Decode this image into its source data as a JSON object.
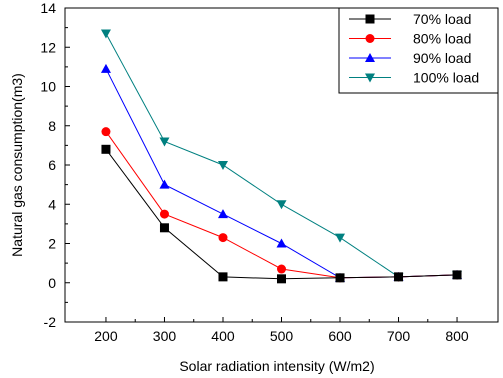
{
  "chart_data": {
    "type": "line",
    "title": "",
    "xlabel": "Solar radiation intensity (W/m2)",
    "ylabel": "Natural gas consumption(m3)",
    "x": [
      200,
      300,
      400,
      500,
      600,
      700,
      800
    ],
    "xticks": [
      "200",
      "300",
      "400",
      "500",
      "600",
      "700",
      "800"
    ],
    "xlim": [
      130,
      870
    ],
    "yticks": [
      "-2",
      "0",
      "2",
      "4",
      "6",
      "8",
      "10",
      "12",
      "14"
    ],
    "ylim": [
      -2,
      14
    ],
    "grid": false,
    "legend_position": "top-right",
    "series": [
      {
        "name": "70% load",
        "color": "#000000",
        "marker": "square",
        "values": [
          6.8,
          2.8,
          0.3,
          0.2,
          0.25,
          0.3,
          0.4
        ]
      },
      {
        "name": "80% load",
        "color": "#ff0000",
        "marker": "circle",
        "values": [
          7.7,
          3.5,
          2.3,
          0.7,
          0.25,
          0.3,
          0.4
        ]
      },
      {
        "name": "90% load",
        "color": "#0000ff",
        "marker": "triangle-up",
        "values": [
          10.9,
          5.0,
          3.5,
          2.0,
          0.25,
          0.3,
          0.4
        ]
      },
      {
        "name": "100% load",
        "color": "#008080",
        "marker": "triangle-down",
        "values": [
          12.7,
          7.2,
          6.0,
          4.0,
          2.3,
          0.3,
          0.4
        ]
      }
    ]
  }
}
